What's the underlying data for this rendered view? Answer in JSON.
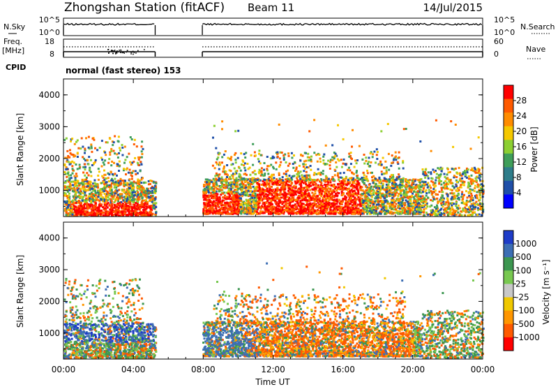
{
  "header": {
    "station": "Zhongshan Station (fitACF)",
    "beam": "Beam 11",
    "date": "14/Jul/2015"
  },
  "top_panels": {
    "nsky_label": "N.Sky",
    "nsky_ticks": [
      "10^5",
      "10^0"
    ],
    "nsearch_label": "N.Search",
    "nsearch_ticks": [
      "10^5",
      "10^0"
    ],
    "freq_label_1": "Freq.",
    "freq_label_2": "[MHz]",
    "freq_ticks": [
      "18",
      "8"
    ],
    "nave_label": "Nave",
    "nave_ticks": [
      "60",
      "0"
    ],
    "cpid_label": "CPID",
    "cpid_text": "normal (fast stereo) 153"
  },
  "chart_data": [
    {
      "type": "heatmap",
      "ylabel": "Slant Range [km]",
      "y_ticks": [
        "4000",
        "3000",
        "2000",
        "1000"
      ],
      "xlim": [
        0,
        24
      ],
      "ylim": [
        180,
        4500
      ],
      "data_gap": [
        5.25,
        7.95
      ],
      "colorbar": {
        "label": "Power [dB]",
        "ticks": [
          "28",
          "24",
          "20",
          "16",
          "12",
          "8",
          "4"
        ],
        "colors": [
          "#ff0000",
          "#ff5a00",
          "#ff8c00",
          "#f5c800",
          "#8ccf32",
          "#3f9e5a",
          "#2e7d8a",
          "#1f4fa8",
          "#0000ff"
        ]
      }
    },
    {
      "type": "heatmap",
      "ylabel": "Slant Range [km]",
      "y_ticks": [
        "4000",
        "3000",
        "2000",
        "1000"
      ],
      "xlim": [
        0,
        24
      ],
      "ylim": [
        180,
        4500
      ],
      "data_gap": [
        5.25,
        7.95
      ],
      "colorbar": {
        "label": "Velocity [m s⁻¹]",
        "ticks": [
          "1000",
          "500",
          "100",
          "25",
          "-25",
          "-100",
          "-500",
          "-1000"
        ],
        "colors": [
          "#1e3cc8",
          "#3c6eb4",
          "#3c9650",
          "#78c850",
          "#c8c8c8",
          "#f0c800",
          "#ff9600",
          "#ff5a00",
          "#ff0000"
        ]
      }
    }
  ],
  "x_axis": {
    "label": "Time UT",
    "ticks": [
      "00:00",
      "04:00",
      "08:00",
      "12:00",
      "16:00",
      "20:00",
      "00:00"
    ]
  }
}
